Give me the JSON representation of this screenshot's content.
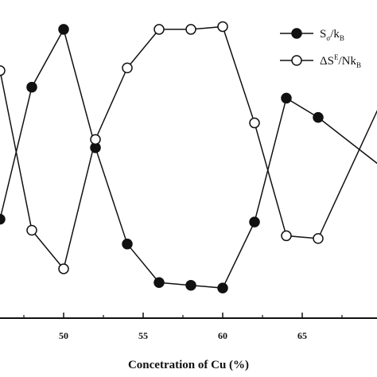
{
  "chart_data": {
    "type": "line",
    "xlabel": "Concetration of Cu (%)",
    "ylabel": "",
    "xlim": [
      46.0,
      69.7
    ],
    "ylim": [
      0,
      1
    ],
    "x_ticks": [
      50,
      55,
      60,
      65
    ],
    "x_tick_labels": [
      "50",
      "55",
      "60",
      "65"
    ],
    "legend_position": "top-right",
    "series": [
      {
        "name": "S_σ/k_B",
        "name_parts": {
          "base": "S",
          "sub": "σ",
          "sep": "/k",
          "sub2": "B"
        },
        "marker": "filled-circle",
        "x": [
          46,
          48,
          50,
          52,
          54,
          56,
          58,
          60,
          62,
          64,
          66,
          70
        ],
        "y": [
          0.29,
          0.77,
          0.98,
          0.55,
          0.2,
          0.06,
          0.05,
          0.04,
          0.28,
          0.73,
          0.66,
          0.48
        ]
      },
      {
        "name": "ΔS^E/Nk_B",
        "name_parts": {
          "base": "ΔS",
          "sup": "E",
          "sep": "/Nk",
          "sub": "B"
        },
        "marker": "open-circle",
        "x": [
          46,
          48,
          50,
          52,
          54,
          56,
          58,
          60,
          62,
          64,
          66,
          70
        ],
        "y": [
          0.83,
          0.25,
          0.11,
          0.58,
          0.84,
          0.98,
          0.98,
          0.99,
          0.64,
          0.23,
          0.22,
          0.72
        ]
      }
    ]
  },
  "colors": {
    "line": "#111111",
    "background": "#ffffff"
  }
}
